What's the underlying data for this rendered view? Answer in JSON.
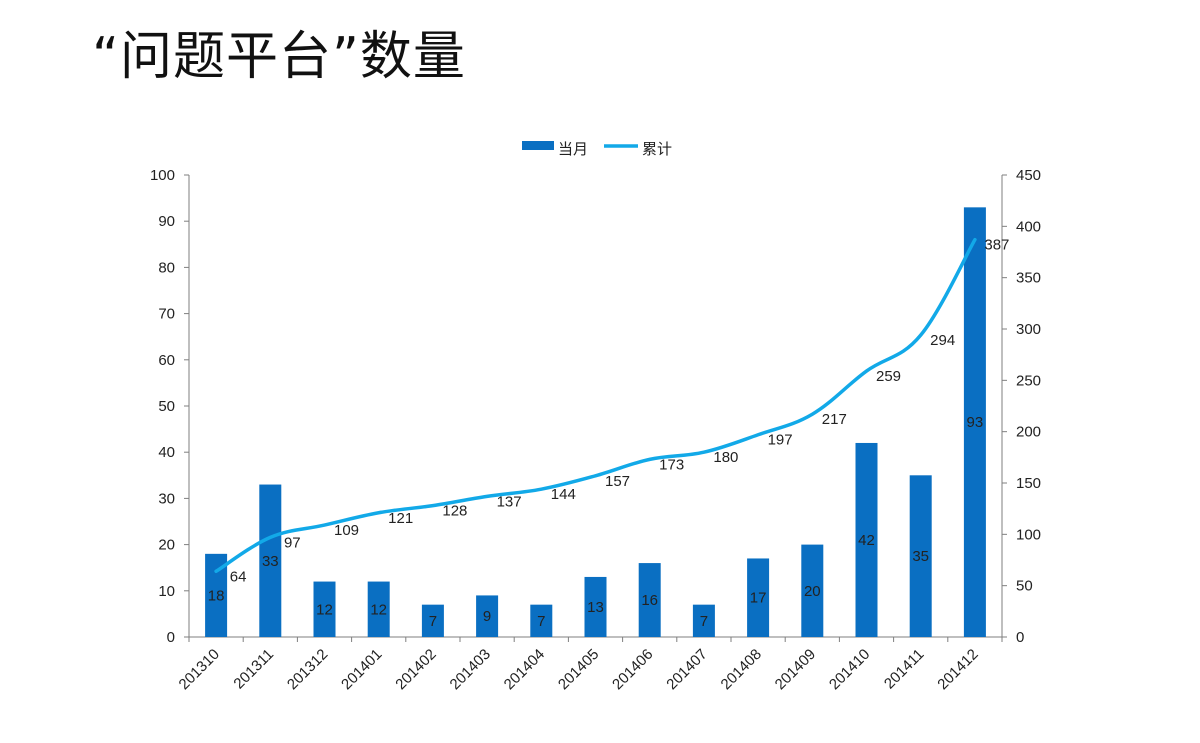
{
  "title": "“问题平台”数量",
  "colors": {
    "bar": "#0A6FC2",
    "line": "#12A9E8",
    "axis": "#7f7f7f",
    "text": "#222222"
  },
  "chart_data": {
    "type": "bar+line",
    "title": "",
    "legend": {
      "position": "top",
      "entries": [
        "当月",
        "累计"
      ]
    },
    "categories": [
      "201310",
      "201311",
      "201312",
      "201401",
      "201402",
      "201403",
      "201404",
      "201405",
      "201406",
      "201407",
      "201408",
      "201409",
      "201410",
      "201411",
      "201412"
    ],
    "series": [
      {
        "name": "当月",
        "type": "bar",
        "axis": "left",
        "values": [
          18,
          33,
          12,
          12,
          7,
          9,
          7,
          13,
          16,
          7,
          17,
          20,
          42,
          35,
          93
        ]
      },
      {
        "name": "累计",
        "type": "line",
        "axis": "right",
        "values": [
          64,
          97,
          109,
          121,
          128,
          137,
          144,
          157,
          173,
          180,
          197,
          217,
          259,
          294,
          387
        ]
      }
    ],
    "y_left": {
      "min": 0,
      "max": 100,
      "step": 10
    },
    "y_right": {
      "min": 0,
      "max": 450,
      "step": 50
    },
    "grid": false
  }
}
